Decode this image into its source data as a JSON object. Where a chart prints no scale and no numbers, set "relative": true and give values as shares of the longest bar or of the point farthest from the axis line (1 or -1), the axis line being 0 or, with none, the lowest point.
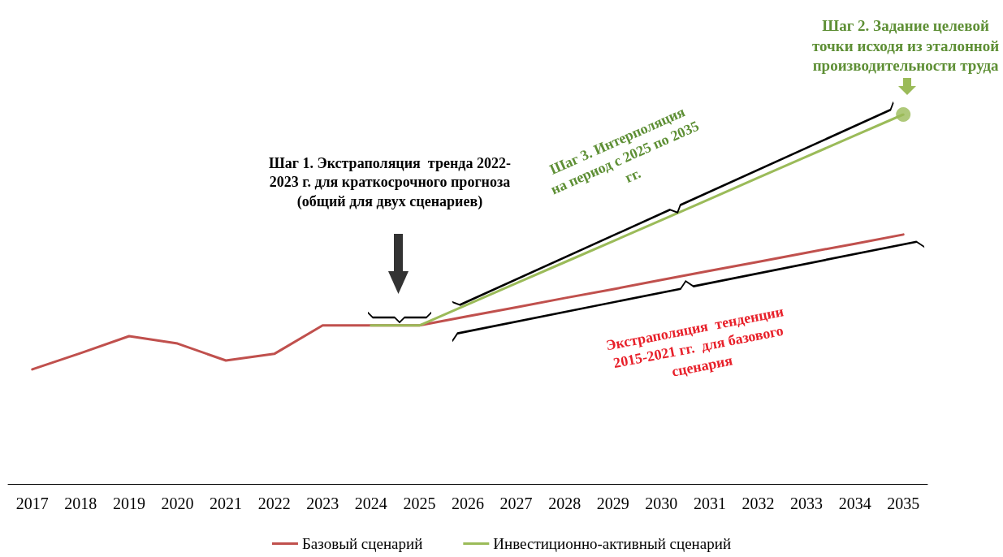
{
  "chart_data": {
    "type": "line",
    "relative": true,
    "categories": [
      "2017",
      "2018",
      "2019",
      "2020",
      "2021",
      "2022",
      "2023",
      "2024",
      "2025",
      "2026",
      "2027",
      "2028",
      "2029",
      "2030",
      "2031",
      "2032",
      "2033",
      "2034",
      "2035"
    ],
    "series": [
      {
        "name": "Базовый сценарий",
        "color": "#c0504d",
        "values": [
          0.31,
          0.354,
          0.4,
          0.38,
          0.334,
          0.352,
          0.429,
          0.429,
          0.429,
          0.454,
          0.478,
          0.503,
          0.527,
          0.552,
          0.577,
          0.601,
          0.626,
          0.65,
          0.675
        ]
      },
      {
        "name": "Инвестиционно-активный сценарий",
        "color": "#9bbb59",
        "values": [
          null,
          null,
          null,
          null,
          null,
          null,
          null,
          0.429,
          0.429,
          0.486,
          0.543,
          0.6,
          0.657,
          0.714,
          0.771,
          0.829,
          0.886,
          0.943,
          1
        ]
      },
      {
        "type": "scatter",
        "color": "#9bbb59",
        "marker": "circle",
        "values": [
          null,
          null,
          null,
          null,
          null,
          null,
          null,
          null,
          null,
          null,
          null,
          null,
          null,
          null,
          null,
          null,
          null,
          null,
          1
        ]
      }
    ],
    "marker": "none",
    "line_style": "solid",
    "grid": false,
    "legend": "bottom",
    "annotations": [
      "Шаг 1. Экстраполяция  тренда 2022-\n2023 г. для краткосрочного прогноза\n(общий для двух сценариев)",
      "Шаг 2. Задание целевой\nточки исходя из эталонной\nпроизводительности труда",
      "Шаг 3. Интерполяция\nна период с 2025 по 2035\nгг.",
      "Экстраполяция  тенденции\n2015-2021 гг.  для базового\nсценария"
    ]
  }
}
